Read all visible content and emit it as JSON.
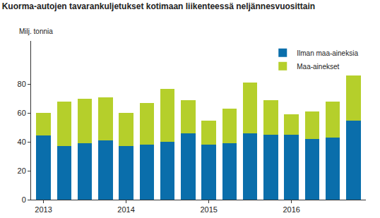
{
  "chart_data": {
    "type": "bar",
    "stacked": true,
    "title": "Kuorma-autojen tavarankuljetukset kotimaan liikenteessä neljännesvuosittain",
    "ylabel": "Milj. tonnia",
    "categories": [
      "2013",
      null,
      null,
      null,
      "2014",
      null,
      null,
      null,
      "2015",
      null,
      null,
      null,
      "2016",
      null,
      null,
      null
    ],
    "series": [
      {
        "name": "Ilman maa-aineksia",
        "color": "#0a6eab",
        "values": [
          44.5,
          37,
          39,
          41,
          37,
          38,
          40,
          46,
          38,
          39,
          46,
          45,
          45,
          42,
          43,
          55
        ]
      },
      {
        "name": "Maa-ainekset",
        "color": "#b5cf2b",
        "values": [
          15.5,
          31,
          31,
          30,
          23,
          29,
          37,
          23,
          17,
          24,
          35,
          24,
          14,
          19,
          25,
          31
        ]
      }
    ],
    "ylim": [
      0,
      110
    ],
    "yticks": [
      0,
      20,
      40,
      60,
      80
    ],
    "grid": false,
    "legend": "top-right"
  }
}
